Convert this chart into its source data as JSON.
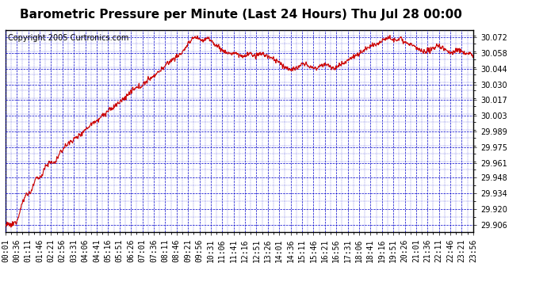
{
  "title": "Barometric Pressure per Minute (Last 24 Hours) Thu Jul 28 00:00",
  "copyright": "Copyright 2005 Curtronics.com",
  "yticks": [
    29.906,
    29.92,
    29.934,
    29.948,
    29.961,
    29.975,
    29.989,
    30.003,
    30.017,
    30.03,
    30.044,
    30.058,
    30.072
  ],
  "ylim": [
    29.9,
    30.079
  ],
  "xtick_labels": [
    "00:01",
    "00:36",
    "01:11",
    "01:46",
    "02:21",
    "02:56",
    "03:31",
    "04:06",
    "04:41",
    "05:16",
    "05:51",
    "06:26",
    "07:01",
    "07:36",
    "08:11",
    "08:46",
    "09:21",
    "09:56",
    "10:31",
    "11:06",
    "11:41",
    "12:16",
    "12:51",
    "13:26",
    "14:01",
    "14:36",
    "15:11",
    "15:46",
    "16:21",
    "16:56",
    "17:31",
    "18:06",
    "18:41",
    "19:16",
    "19:51",
    "20:26",
    "21:01",
    "21:36",
    "22:11",
    "22:46",
    "23:21",
    "23:56"
  ],
  "bg_color": "#ffffff",
  "plot_bg_color": "#ffffff",
  "line_color": "#cc0000",
  "grid_color": "#0000cc",
  "title_color": "#000000",
  "copyright_color": "#000000",
  "ytick_color": "#000000",
  "xtick_color": "#000000",
  "title_fontsize": 11,
  "copyright_fontsize": 7,
  "tick_fontsize": 7
}
